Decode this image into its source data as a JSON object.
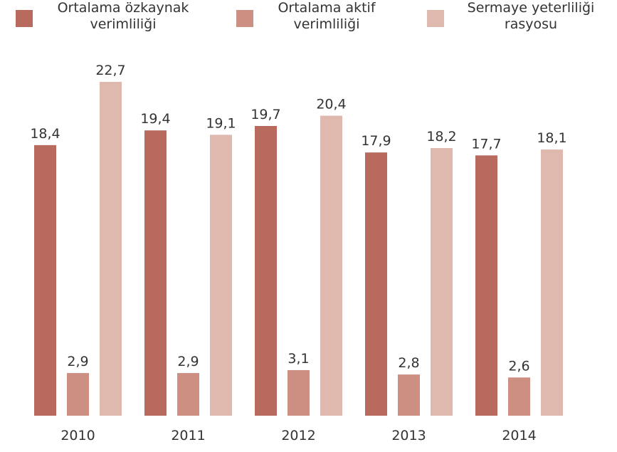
{
  "chart_data": {
    "type": "bar",
    "categories": [
      "2010",
      "2011",
      "2012",
      "2013",
      "2014"
    ],
    "series": [
      {
        "name": "Ortalama özkaynak verimliliği",
        "color": "#b86a5f",
        "values": [
          18.4,
          19.4,
          19.7,
          17.9,
          17.7
        ],
        "value_labels": [
          "18,4",
          "19,4",
          "19,7",
          "17,9",
          "17,7"
        ]
      },
      {
        "name": "Ortalama aktif verimliliği",
        "color": "#cc8f82",
        "values": [
          2.9,
          2.9,
          3.1,
          2.8,
          2.6
        ],
        "value_labels": [
          "2,9",
          "2,9",
          "3,1",
          "2,8",
          "2,6"
        ]
      },
      {
        "name": "Sermaye yeterliliği rasyosu",
        "color": "#dfb9ae",
        "values": [
          22.7,
          19.1,
          20.4,
          18.2,
          18.1
        ],
        "value_labels": [
          "22,7",
          "19,1",
          "20,4",
          "18,2",
          "18,1"
        ]
      }
    ]
  }
}
